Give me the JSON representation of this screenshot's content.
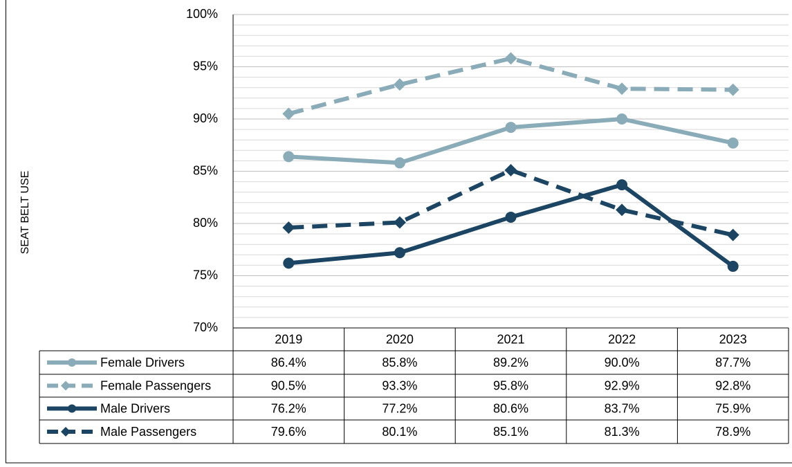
{
  "chart_data": {
    "type": "line",
    "y_axis_label": "SEAT BELT USE",
    "categories": [
      "2019",
      "2020",
      "2021",
      "2022",
      "2023"
    ],
    "ylim": [
      70,
      100
    ],
    "yticks": [
      {
        "value": 70,
        "label": "70%"
      },
      {
        "value": 75,
        "label": "75%"
      },
      {
        "value": 80,
        "label": "80%"
      },
      {
        "value": 85,
        "label": "85%"
      },
      {
        "value": 90,
        "label": "90%"
      },
      {
        "value": 95,
        "label": "95%"
      },
      {
        "value": 100,
        "label": "100%"
      }
    ],
    "minor_yticks": [
      71,
      72,
      73,
      74,
      76,
      77,
      78,
      79,
      81,
      82,
      83,
      84,
      86,
      87,
      88,
      89,
      91,
      92,
      93,
      94,
      96,
      97,
      98,
      99
    ],
    "grid": true,
    "data_table": true,
    "series": [
      {
        "name": "Female Drivers",
        "color": "#8aabb8",
        "dash": false,
        "marker": "circle",
        "values": [
          86.4,
          85.8,
          89.2,
          90.0,
          87.7
        ],
        "value_labels": [
          "86.4%",
          "85.8%",
          "89.2%",
          "90.0%",
          "87.7%"
        ]
      },
      {
        "name": "Female Passengers",
        "color": "#8aabb8",
        "dash": true,
        "marker": "diamond",
        "values": [
          90.5,
          93.3,
          95.8,
          92.9,
          92.8
        ],
        "value_labels": [
          "90.5%",
          "93.3%",
          "95.8%",
          "92.9%",
          "92.8%"
        ]
      },
      {
        "name": "Male Drivers",
        "color": "#1b4563",
        "dash": false,
        "marker": "circle",
        "values": [
          76.2,
          77.2,
          80.6,
          83.7,
          75.9
        ],
        "value_labels": [
          "76.2%",
          "77.2%",
          "80.6%",
          "83.7%",
          "75.9%"
        ]
      },
      {
        "name": "Male Passengers",
        "color": "#1b4563",
        "dash": true,
        "marker": "diamond",
        "values": [
          79.6,
          80.1,
          85.1,
          81.3,
          78.9
        ],
        "value_labels": [
          "79.6%",
          "80.1%",
          "85.1%",
          "81.3%",
          "78.9%"
        ]
      }
    ]
  }
}
